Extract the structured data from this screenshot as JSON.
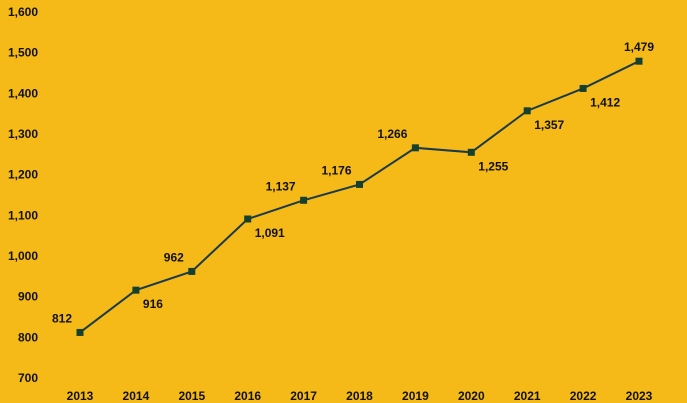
{
  "chart_data": {
    "type": "line",
    "title": "",
    "xlabel": "",
    "ylabel": "",
    "categories": [
      "2013",
      "2014",
      "2015",
      "2016",
      "2017",
      "2018",
      "2019",
      "2020",
      "2021",
      "2022",
      "2023"
    ],
    "series": [
      {
        "values": [
          812,
          916,
          962,
          1091,
          1137,
          1176,
          1266,
          1255,
          1357,
          1412,
          1479
        ]
      }
    ],
    "data_labels": [
      "812",
      "916",
      "962",
      "1,091",
      "1,137",
      "1,176",
      "1,266",
      "1,255",
      "1,357",
      "1,412",
      "1,479"
    ],
    "y_ticks": [
      700,
      800,
      900,
      1000,
      1100,
      1200,
      1300,
      1400,
      1500,
      1600
    ],
    "y_tick_labels": [
      "700",
      "800",
      "900",
      "1,000",
      "1,100",
      "1,200",
      "1,300",
      "1,400",
      "1,500",
      "1,600"
    ],
    "ylim": [
      700,
      1600
    ],
    "grid": false,
    "legend": "none",
    "colors": {
      "background": "#F5BA18",
      "line": "#1B3A4B",
      "marker": "#16402E",
      "text": "#111111"
    },
    "marker": "square"
  }
}
